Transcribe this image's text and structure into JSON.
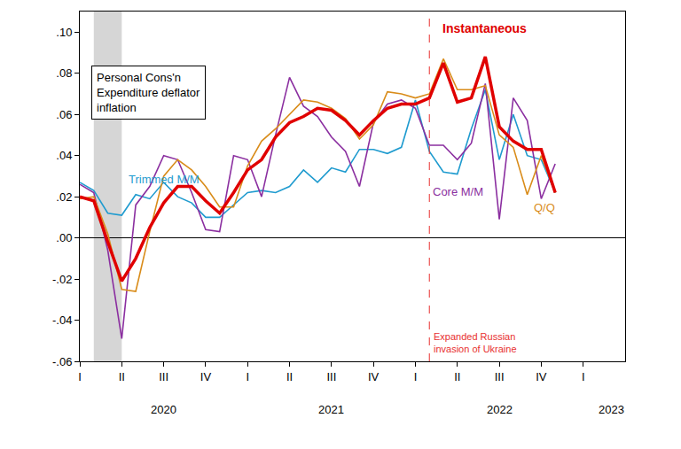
{
  "chart_data": {
    "type": "line",
    "title": "Personal Cons'n\nExpenditure deflator\ninflation",
    "categories": [
      "I",
      null,
      null,
      "II",
      null,
      null,
      "III",
      null,
      null,
      "IV",
      null,
      null,
      "I",
      null,
      null,
      "II",
      null,
      null,
      "III",
      null,
      null,
      "IV",
      null,
      null,
      "I",
      null,
      null,
      "II",
      null,
      null,
      "III",
      null,
      null,
      "IV",
      null,
      null,
      "I",
      null,
      null,
      null
    ],
    "group_labels": [
      {
        "text": "2020",
        "x": 6
      },
      {
        "text": "2021",
        "x": 18
      },
      {
        "text": "2022",
        "x": 30
      },
      {
        "text": "2023",
        "x": 38
      }
    ],
    "series": [
      {
        "name": "Trimmed M/M",
        "color": "#1f9bcf",
        "line_style": "solid",
        "values": [
          0.027,
          0.023,
          0.012,
          0.011,
          0.021,
          0.019,
          0.027,
          0.02,
          0.017,
          0.01,
          0.01,
          0.016,
          0.022,
          0.023,
          0.022,
          0.025,
          0.033,
          0.027,
          0.034,
          0.032,
          0.043,
          0.043,
          0.041,
          0.044,
          0.067,
          0.042,
          0.032,
          0.031,
          0.053,
          0.072,
          0.038,
          0.06,
          0.04,
          0.038,
          0.022,
          null,
          null,
          null,
          null,
          null
        ]
      },
      {
        "name": "Core M/M",
        "color": "#8b2fa0",
        "line_style": "solid",
        "values": [
          0.026,
          0.022,
          -0.006,
          -0.049,
          0.016,
          0.025,
          0.04,
          0.038,
          0.022,
          0.004,
          0.003,
          0.04,
          0.038,
          0.02,
          0.05,
          0.078,
          0.064,
          0.059,
          0.049,
          0.042,
          0.025,
          0.056,
          0.065,
          0.067,
          0.063,
          0.045,
          0.045,
          0.038,
          0.046,
          0.075,
          0.009,
          0.068,
          0.057,
          0.019,
          0.036,
          null,
          null,
          null,
          null,
          null
        ]
      },
      {
        "name": "Q/Q",
        "color": "#d98c1a",
        "line_style": "solid",
        "values": [
          0.019,
          0.02,
          0.002,
          -0.025,
          -0.026,
          0.003,
          0.03,
          0.038,
          0.033,
          0.025,
          0.015,
          0.015,
          0.035,
          0.047,
          0.053,
          0.06,
          0.067,
          0.066,
          0.063,
          0.058,
          0.048,
          0.055,
          0.071,
          0.07,
          0.068,
          0.07,
          0.087,
          0.072,
          0.072,
          0.074,
          0.05,
          0.044,
          0.021,
          0.04,
          0.022,
          null,
          null,
          null,
          null,
          null
        ]
      },
      {
        "name": "Instantaneous",
        "color": "#e00000",
        "line_style": "thick",
        "values": [
          0.02,
          0.018,
          -0.002,
          -0.021,
          -0.01,
          0.005,
          0.017,
          0.025,
          0.025,
          0.018,
          0.012,
          0.022,
          0.033,
          0.038,
          0.049,
          0.056,
          0.059,
          0.063,
          0.062,
          0.057,
          0.05,
          0.057,
          0.063,
          0.065,
          0.065,
          0.068,
          0.085,
          0.066,
          0.068,
          0.088,
          0.054,
          0.047,
          0.043,
          0.043,
          0.022,
          null,
          null,
          null,
          null,
          null
        ]
      }
    ],
    "ylim": [
      -0.06,
      0.11
    ],
    "yticks": [
      {
        "value": 0.1,
        "label": ".10"
      },
      {
        "value": 0.08,
        "label": ".08"
      },
      {
        "value": 0.06,
        "label": ".06"
      },
      {
        "value": 0.04,
        "label": ".04"
      },
      {
        "value": 0.02,
        "label": ".02"
      },
      {
        "value": 0.0,
        "label": ".00"
      },
      {
        "value": -0.02,
        "label": "-.02"
      },
      {
        "value": -0.04,
        "label": "-.04"
      },
      {
        "value": -0.06,
        "label": "-.06"
      }
    ],
    "grid": false,
    "shaded_regions": [
      {
        "start": 1,
        "end": 3
      }
    ],
    "vertical_lines": [
      {
        "x": 25,
        "text": "Expanded Russian\ninvasion of Ukraine",
        "color": "#e8302f",
        "line_style": "dash"
      }
    ]
  }
}
